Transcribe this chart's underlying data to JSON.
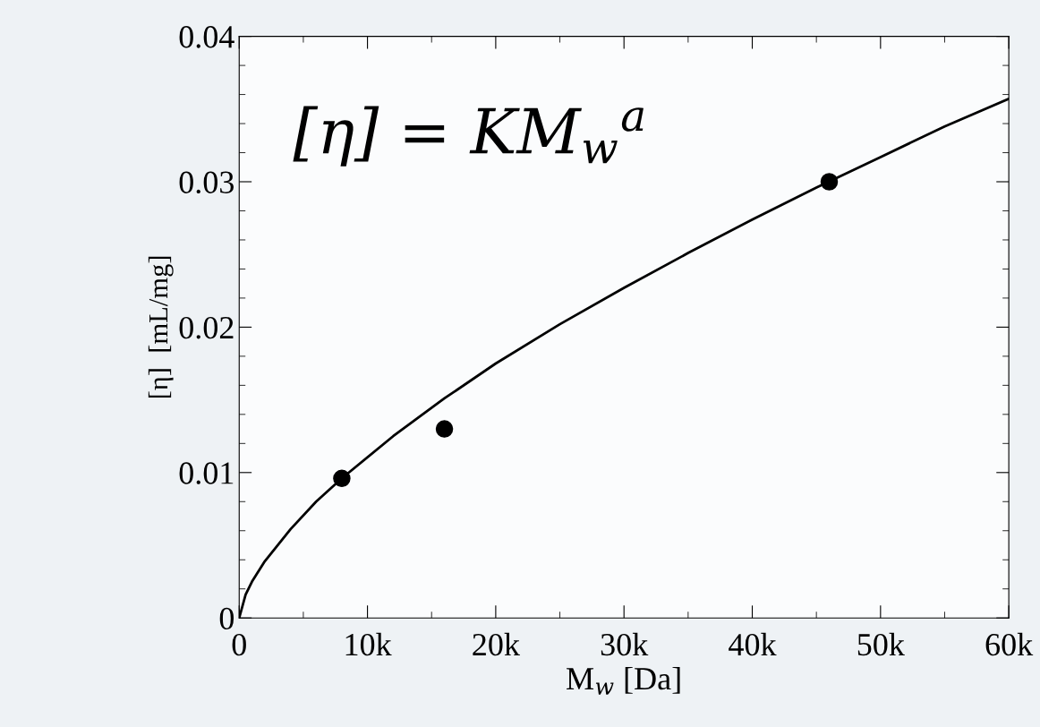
{
  "chart_data": {
    "type": "scatter",
    "xlabel": "M$_{w}$ [Da]",
    "ylabel": "[η]  [mL/mg]",
    "annotations": [
      "[η] = KM$_{w}$$^{a}$"
    ],
    "xlim": [
      0,
      60000
    ],
    "ylim": [
      0,
      0.04
    ],
    "xticks": [
      0,
      {
        "value": 10000,
        "label": "10k"
      },
      {
        "value": 20000,
        "label": "20k"
      },
      {
        "value": 30000,
        "label": "30k"
      },
      {
        "value": 40000,
        "label": "40k"
      },
      {
        "value": 50000,
        "label": "50k"
      },
      {
        "value": 60000,
        "label": "60k"
      }
    ],
    "yticks": [
      0,
      0.01,
      0.02,
      0.03,
      0.04
    ],
    "grid": false,
    "legend": false,
    "series": [
      {
        "color": "#000000",
        "marker": "circle",
        "x": [
          8000,
          16000,
          46000
        ],
        "values": [
          0.0096,
          0.013,
          0.03
        ]
      },
      {
        "type": "line",
        "color": "#000000",
        "line_style": "solid",
        "marker": "none",
        "x": [
          0,
          500,
          1000,
          2000,
          4000,
          6000,
          8000,
          12000,
          16000,
          20000,
          25000,
          30000,
          35000,
          40000,
          45000,
          50000,
          55000,
          60000
        ],
        "values": [
          0,
          0.0016,
          0.0025,
          0.0039,
          0.0061,
          0.008,
          0.0096,
          0.0125,
          0.0151,
          0.0175,
          0.0202,
          0.0227,
          0.0251,
          0.0274,
          0.0296,
          0.0317,
          0.0338,
          0.0357
        ]
      }
    ]
  }
}
